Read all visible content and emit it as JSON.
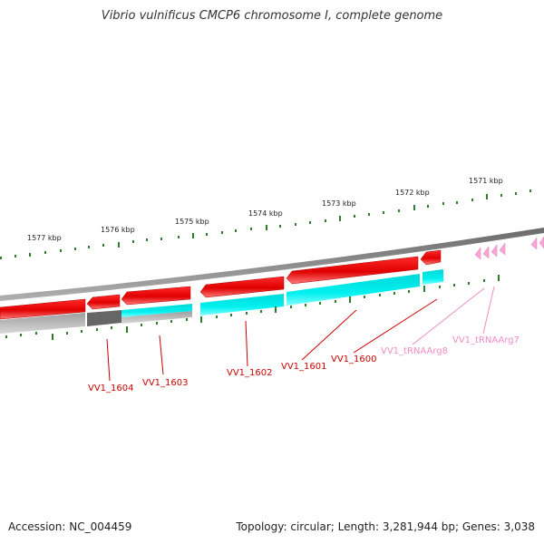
{
  "title": "Vibrio vulnificus CMCP6 chromosome I, complete genome",
  "footer": {
    "accession": "Accession: NC_004459",
    "summary": "Topology: circular; Length: 3,281,944 bp; Genes: 3,038"
  },
  "scale_labels": [
    "1577 kbp",
    "1576 kbp",
    "1575 kbp",
    "1574 kbp",
    "1573 kbp",
    "1572 kbp",
    "1571 kbp"
  ],
  "genes": [
    {
      "name": "VV1_1604",
      "type": "CDS",
      "color": "#cc0000"
    },
    {
      "name": "VV1_1603",
      "type": "CDS",
      "color": "#cc0000"
    },
    {
      "name": "VV1_1602",
      "type": "CDS",
      "color": "#cc0000"
    },
    {
      "name": "VV1_1601",
      "type": "CDS",
      "color": "#cc0000"
    },
    {
      "name": "VV1_1600",
      "type": "CDS",
      "color": "#cc0000"
    },
    {
      "name": "VV1_tRNAArg8",
      "type": "tRNA",
      "color": "#f28cc4"
    },
    {
      "name": "VV1_tRNAArg7",
      "type": "tRNA",
      "color": "#f28cc4"
    }
  ],
  "colors": {
    "backbone": "#808080",
    "cds": "#ff0000",
    "cog_cyan": "#00e5e5",
    "cog_gray": "#b0b0b0",
    "cog_dark": "#666666",
    "trna": "#f7a6d6",
    "tick": "#2e7d2e"
  }
}
